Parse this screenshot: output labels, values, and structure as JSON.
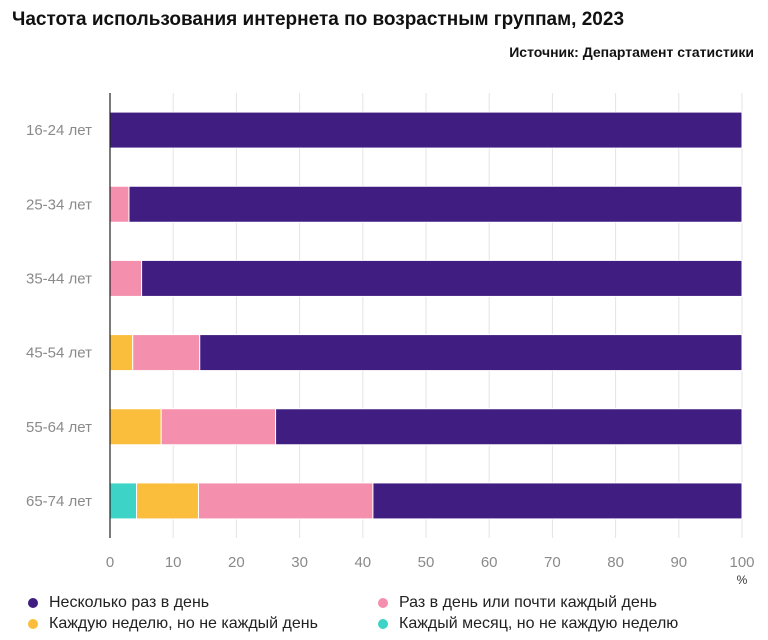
{
  "title": "Частота использования интернета по возрастным группам, 2023",
  "source": "Источник: Департамент статистики",
  "chart_data": {
    "type": "bar",
    "orientation": "horizontal",
    "stacked": true,
    "categories": [
      "16-24 лет",
      "25-34 лет",
      "35-44 лет",
      "45-54 лет",
      "55-64 лет",
      "65-74 лет"
    ],
    "series": [
      {
        "name": "Каждый месяц, но не каждую неделю",
        "color": "#3dd4c7",
        "values": [
          0,
          0,
          0,
          0,
          0,
          4.2
        ]
      },
      {
        "name": "Каждую неделю, но не каждый день",
        "color": "#fbbe3c",
        "values": [
          0,
          0,
          0,
          3.6,
          8.1,
          9.8
        ]
      },
      {
        "name": "Раз в день или почти каждый день",
        "color": "#f48fad",
        "values": [
          0,
          3,
          5,
          10.6,
          18.1,
          27.6
        ]
      },
      {
        "name": "Несколько раз в день",
        "color": "#3f1d81",
        "values": [
          100,
          97,
          95,
          85.8,
          73.8,
          58.4
        ]
      }
    ],
    "xlim": [
      0,
      100
    ],
    "xticks": [
      0,
      10,
      20,
      30,
      40,
      50,
      60,
      70,
      80,
      90,
      100
    ],
    "xunit": "%",
    "grid": true,
    "legend_position": "bottom"
  },
  "legend": [
    {
      "label": "Несколько раз в день",
      "color": "#3f1d81"
    },
    {
      "label": "Раз в день или почти каждый день",
      "color": "#f48fad"
    },
    {
      "label": "Каждую неделю, но не каждый день",
      "color": "#fbbe3c"
    },
    {
      "label": "Каждый месяц, но не каждую неделю",
      "color": "#3dd4c7"
    }
  ]
}
